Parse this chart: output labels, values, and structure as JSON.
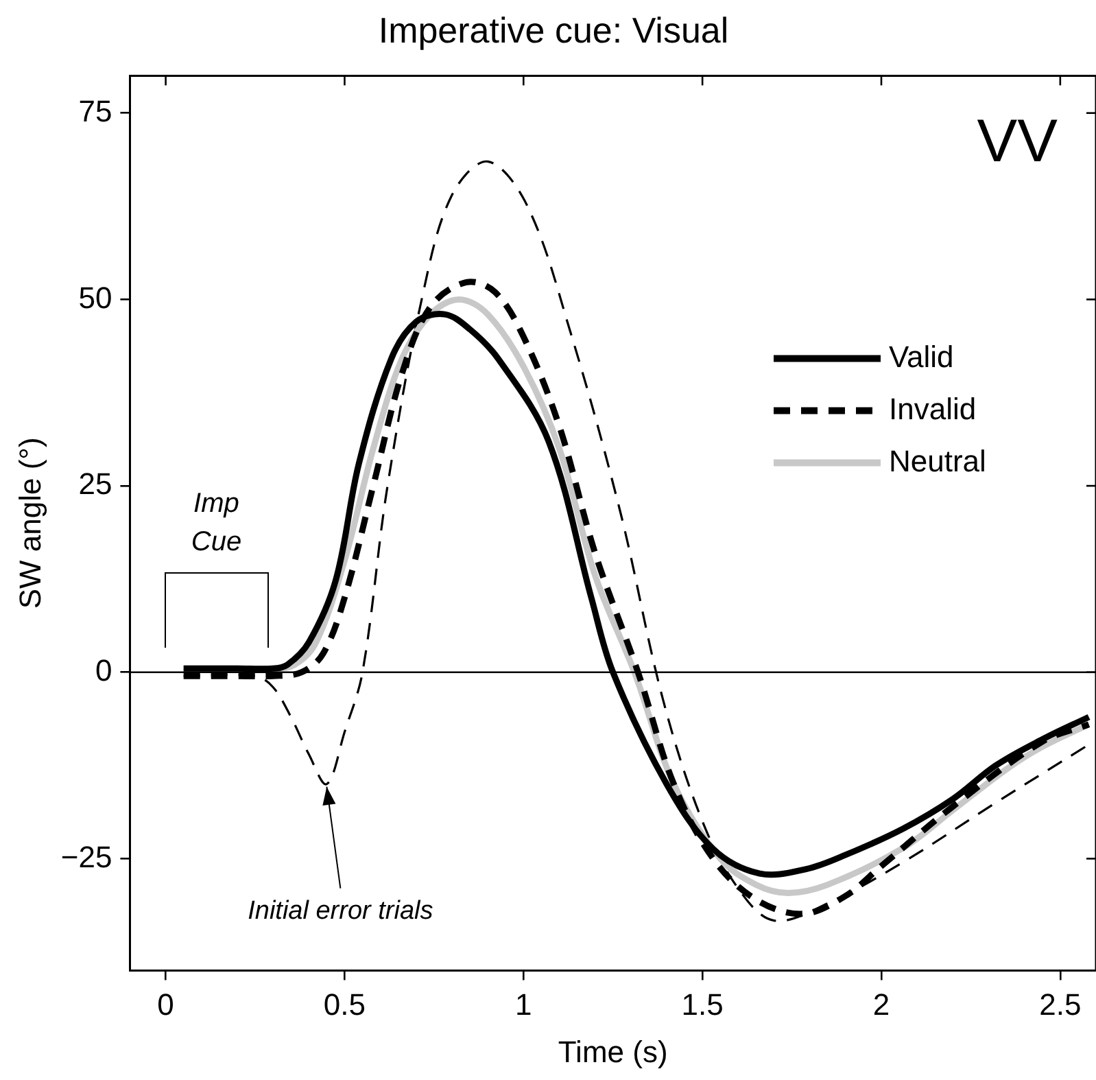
{
  "chart_data": {
    "type": "line",
    "title": "Imperative cue: Visual",
    "xlabel": "Time (s)",
    "ylabel": "SW angle (°)",
    "xlim": [
      -0.1,
      2.6
    ],
    "xticks": [
      0,
      0.5,
      1,
      1.5,
      2,
      2.5
    ],
    "ylim": [
      -40,
      80
    ],
    "yticks": [
      -25,
      0,
      25,
      50,
      75
    ],
    "grid": false,
    "legend": "right",
    "marker": "none",
    "series": [
      {
        "name": "Valid",
        "color": "#000000",
        "line_style": "solid",
        "x": [
          0.05,
          0.2,
          0.3,
          0.34,
          0.4,
          0.475,
          0.54,
          0.63,
          0.7,
          0.78,
          0.85,
          0.93,
          1.07,
          1.19,
          1.25,
          1.4,
          1.53,
          1.66,
          1.79,
          1.9,
          2.06,
          2.2,
          2.32,
          2.45,
          2.58
        ],
        "values": [
          0.5,
          0.5,
          0.5,
          1,
          4,
          12.3,
          28,
          42,
          47,
          48,
          46,
          42,
          31,
          9.9,
          0,
          -15,
          -23.7,
          -27,
          -26.4,
          -24.5,
          -21,
          -17,
          -12.5,
          -9,
          -6
        ]
      },
      {
        "name": "Invalid",
        "color": "#000000",
        "line_style": "dashed",
        "x": [
          0.05,
          0.2,
          0.3,
          0.38,
          0.44,
          0.5,
          0.58,
          0.66,
          0.74,
          0.84,
          0.92,
          1.0,
          1.1,
          1.2,
          1.32,
          1.42,
          1.53,
          1.65,
          1.78,
          1.9,
          2.0,
          2.2,
          2.45,
          2.58
        ],
        "values": [
          -0.5,
          -0.5,
          -0.5,
          0,
          2.5,
          10,
          25,
          40,
          49,
          52.3,
          51,
          45,
          33,
          16,
          0,
          -15,
          -25,
          -30.5,
          -32.4,
          -30,
          -26,
          -18,
          -9.3,
          -7
        ]
      },
      {
        "name": "Neutral",
        "color": "#c8c8c8",
        "line_style": "solid",
        "x": [
          0.05,
          0.2,
          0.3,
          0.36,
          0.42,
          0.5,
          0.58,
          0.66,
          0.74,
          0.82,
          0.9,
          1.0,
          1.1,
          1.2,
          1.31,
          1.42,
          1.55,
          1.65,
          1.74,
          1.85,
          2.06,
          2.2,
          2.35,
          2.45,
          2.58
        ],
        "values": [
          0.5,
          0.5,
          0.5,
          1,
          4,
          15,
          30,
          42,
          48,
          50,
          48,
          41,
          30,
          13,
          0,
          -15,
          -25,
          -28.5,
          -29.6,
          -28.5,
          -23.6,
          -18.5,
          -13,
          -10,
          -7
        ]
      },
      {
        "color": "#000000",
        "line_style": "dashed",
        "x": [
          0.05,
          0.25,
          0.3,
          0.35,
          0.4,
          0.45,
          0.5,
          0.55,
          0.62,
          0.72,
          0.8,
          0.9,
          1.01,
          1.13,
          1.27,
          1.39,
          1.5,
          1.6,
          1.7,
          1.85,
          2.06,
          2.32,
          2.57
        ],
        "values": [
          -0.5,
          -0.5,
          -2,
          -6,
          -11,
          -15,
          -8,
          0,
          25,
          51,
          64,
          68.5,
          62.6,
          45.8,
          21.6,
          -3.7,
          -20,
          -29,
          -33.3,
          -31,
          -25.5,
          -17.5,
          -10
        ]
      }
    ],
    "ref_lines": [
      {
        "axis": "y",
        "value": 0,
        "color": "#000000",
        "line_style": "solid"
      }
    ],
    "annotations": [
      "VV",
      "Imp Cue",
      {
        "text": "Initial error trials",
        "x": 0.45,
        "y": -15
      }
    ]
  }
}
